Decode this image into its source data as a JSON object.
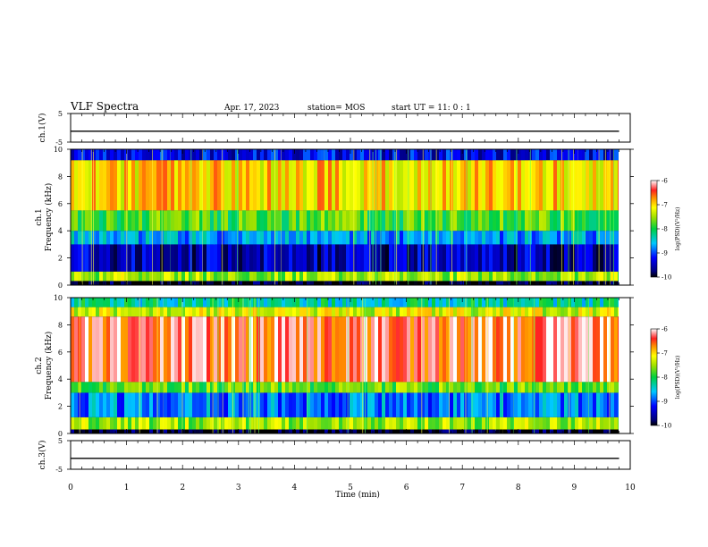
{
  "header": {
    "title": "VLF Spectra",
    "date": "Apr. 17, 2023",
    "station": "station= MOS",
    "start": "start  UT =   11: 0  : 1"
  },
  "colorbar_label": "log(PSD)(V²/Hz)",
  "chart_data": [
    {
      "type": "line",
      "panel": "ch1-waveform",
      "ylabel": "ch.1(V)",
      "ylim": [
        -5,
        5
      ],
      "yticks": [
        5,
        -5
      ],
      "x": [
        0,
        1,
        2,
        3,
        4,
        5,
        6,
        7,
        8,
        9,
        9.8
      ],
      "values": [
        -1.2,
        -1.2,
        -1.2,
        -1.2,
        -1.2,
        -1.2,
        -1.2,
        -1.2,
        -1.2,
        -1.2,
        -1.2
      ]
    },
    {
      "type": "heatmap",
      "panel": "ch1-spectrogram",
      "ylabel": "ch.1\nFrequency (kHz)",
      "ylim": [
        0,
        10
      ],
      "yticks": [
        0,
        2,
        4,
        6,
        8,
        10
      ],
      "xlim": [
        0,
        9.8
      ],
      "colorbar": {
        "ticks": [
          -6,
          -7,
          -8,
          -9,
          -10
        ],
        "range": [
          -10,
          -6
        ]
      },
      "bands_khz": [
        {
          "from": 0,
          "to": 0.3,
          "log_psd": -10
        },
        {
          "from": 0.3,
          "to": 1.0,
          "log_psd": -7.5
        },
        {
          "from": 1.0,
          "to": 3.0,
          "log_psd": -9.5
        },
        {
          "from": 3.0,
          "to": 4.0,
          "log_psd": -8.7
        },
        {
          "from": 4.0,
          "to": 5.5,
          "log_psd": -7.8
        },
        {
          "from": 5.5,
          "to": 9.2,
          "log_psd": -7
        },
        {
          "from": 9.2,
          "to": 10,
          "log_psd": -9.3
        }
      ]
    },
    {
      "type": "heatmap",
      "panel": "ch2-spectrogram",
      "ylabel": "ch.2\nFrequency (kHz)",
      "ylim": [
        0,
        10
      ],
      "yticks": [
        0,
        2,
        4,
        6,
        8,
        10
      ],
      "xlim": [
        0,
        9.8
      ],
      "colorbar": {
        "ticks": [
          -6,
          -7,
          -8,
          -9,
          -10
        ],
        "range": [
          -10,
          -6
        ]
      },
      "bands_khz": [
        {
          "from": 0,
          "to": 0.3,
          "log_psd": -10
        },
        {
          "from": 0.3,
          "to": 1.2,
          "log_psd": -7.5
        },
        {
          "from": 1.2,
          "to": 3.0,
          "log_psd": -8.8
        },
        {
          "from": 3.0,
          "to": 3.8,
          "log_psd": -7.7
        },
        {
          "from": 3.8,
          "to": 8.6,
          "log_psd": -6.4
        },
        {
          "from": 8.6,
          "to": 9.3,
          "log_psd": -7.3
        },
        {
          "from": 9.3,
          "to": 10,
          "log_psd": -8.3
        }
      ]
    },
    {
      "type": "line",
      "panel": "ch3-waveform",
      "ylabel": "ch.3(V)",
      "ylim": [
        -5,
        5
      ],
      "yticks": [
        5,
        -5
      ],
      "x": [
        0,
        1,
        2,
        3,
        4,
        5,
        6,
        7,
        8,
        9,
        9.8
      ],
      "values": [
        -1.2,
        -1.2,
        -1.2,
        -1.2,
        -1.2,
        -1.2,
        -1.2,
        -1.2,
        -1.2,
        -1.2,
        -1.2
      ]
    }
  ],
  "x_axis": {
    "label": "Time (min)",
    "xlim": [
      0,
      10
    ],
    "ticks": [
      "0",
      "1",
      "2",
      "3",
      "4",
      "5",
      "6",
      "7",
      "8",
      "9",
      "10"
    ]
  }
}
